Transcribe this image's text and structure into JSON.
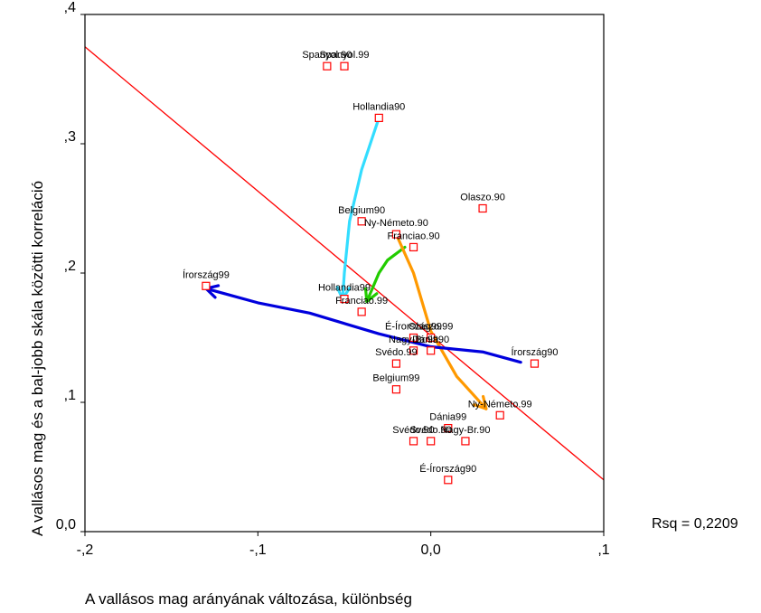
{
  "chart_data": {
    "type": "scatter",
    "xlabel": "A vallásos mag arányának változása, különbség",
    "ylabel": "A vallásos mag és a bal-jobb skála közötti korreláció",
    "xlim": [
      -0.2,
      0.1
    ],
    "ylim": [
      0.0,
      0.4
    ],
    "x_ticks": [
      {
        "value": -0.2,
        "label": "-,2"
      },
      {
        "value": -0.1,
        "label": "-,1"
      },
      {
        "value": 0.0,
        "label": "0,0"
      },
      {
        "value": 0.1,
        "label": ",1"
      }
    ],
    "y_ticks": [
      {
        "value": 0.0,
        "label": "0,0"
      },
      {
        "value": 0.1,
        "label": ",1"
      },
      {
        "value": 0.2,
        "label": ",2"
      },
      {
        "value": 0.3,
        "label": ",3"
      },
      {
        "value": 0.4,
        "label": ",4"
      }
    ],
    "points": [
      {
        "label": "Spanyol.90",
        "x": -0.06,
        "y": 0.36
      },
      {
        "label": "Spanyol.99",
        "x": -0.05,
        "y": 0.36
      },
      {
        "label": "Hollandia90",
        "x": -0.03,
        "y": 0.32
      },
      {
        "label": "Olaszo.90",
        "x": 0.03,
        "y": 0.25
      },
      {
        "label": "Belgium90",
        "x": -0.04,
        "y": 0.24
      },
      {
        "label": "Ny-Németo.90",
        "x": -0.02,
        "y": 0.23
      },
      {
        "label": "Franciao.90",
        "x": -0.01,
        "y": 0.22
      },
      {
        "label": "Írország99",
        "x": -0.13,
        "y": 0.19
      },
      {
        "label": "Hollandia99",
        "x": -0.05,
        "y": 0.18
      },
      {
        "label": "Franciao.99",
        "x": -0.04,
        "y": 0.17
      },
      {
        "label": "É-Írország99",
        "x": -0.01,
        "y": 0.15
      },
      {
        "label": "Olaszo.99",
        "x": 0.0,
        "y": 0.15
      },
      {
        "label": "Írország90",
        "x": 0.06,
        "y": 0.13
      },
      {
        "label": "Nagy-Br.99",
        "x": -0.01,
        "y": 0.14
      },
      {
        "label": "Dánia90",
        "x": 0.0,
        "y": 0.14
      },
      {
        "label": "Svédo.99",
        "x": -0.02,
        "y": 0.13
      },
      {
        "label": "Belgium99",
        "x": -0.02,
        "y": 0.11
      },
      {
        "label": "Ny-Németo.99",
        "x": 0.04,
        "y": 0.09
      },
      {
        "label": "Dánia99",
        "x": 0.01,
        "y": 0.08
      },
      {
        "label": "Svédo.90",
        "x": -0.01,
        "y": 0.07
      },
      {
        "label": "Svédo.90",
        "x": 0.0,
        "y": 0.07
      },
      {
        "label": "Nagy-Br.90",
        "x": 0.02,
        "y": 0.07
      },
      {
        "label": "É-Írország90",
        "x": 0.01,
        "y": 0.04
      }
    ],
    "fit_line": {
      "x": [
        -0.2,
        0.1
      ],
      "y": [
        0.375,
        0.04
      ],
      "color": "#ff0000"
    },
    "rsq_text": "Rsq = 0,2209",
    "arrows": [
      {
        "color": "#33ddff",
        "points": [
          [
            -0.03,
            0.32
          ],
          [
            -0.04,
            0.28
          ],
          [
            -0.047,
            0.24
          ],
          [
            -0.05,
            0.2
          ],
          [
            -0.051,
            0.18
          ]
        ]
      },
      {
        "color": "#22cc00",
        "points": [
          [
            -0.015,
            0.22
          ],
          [
            -0.025,
            0.21
          ],
          [
            -0.03,
            0.2
          ],
          [
            -0.037,
            0.178
          ]
        ]
      },
      {
        "color": "#ff9900",
        "points": [
          [
            -0.02,
            0.23
          ],
          [
            -0.01,
            0.2
          ],
          [
            0.0,
            0.155
          ],
          [
            0.015,
            0.12
          ],
          [
            0.032,
            0.095
          ]
        ]
      },
      {
        "color": "#0000dd",
        "points": [
          [
            0.052,
            0.131
          ],
          [
            0.03,
            0.139
          ],
          [
            0.0,
            0.143
          ],
          [
            -0.03,
            0.153
          ],
          [
            -0.07,
            0.169
          ],
          [
            -0.1,
            0.177
          ],
          [
            -0.13,
            0.188
          ]
        ]
      }
    ],
    "grid": false,
    "legend": "none"
  }
}
